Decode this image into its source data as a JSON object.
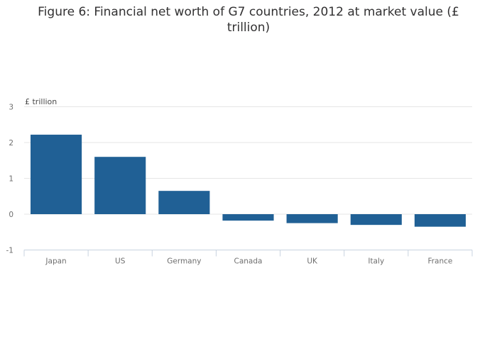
{
  "chart_data": {
    "type": "bar",
    "title": "Figure 6: Financial net worth of G7 countries, 2012 at market value (£ trillion)",
    "ylabel": "£ trillion",
    "xlabel": "",
    "categories": [
      "Japan",
      "US",
      "Germany",
      "Canada",
      "UK",
      "Italy",
      "France"
    ],
    "values": [
      2.22,
      1.6,
      0.65,
      -0.18,
      -0.25,
      -0.3,
      -0.35
    ],
    "ylim": [
      -1,
      3
    ],
    "yticks": [
      3,
      2,
      1,
      0,
      -1
    ],
    "bar_color": "#206095",
    "grid": true,
    "legend": "none"
  }
}
